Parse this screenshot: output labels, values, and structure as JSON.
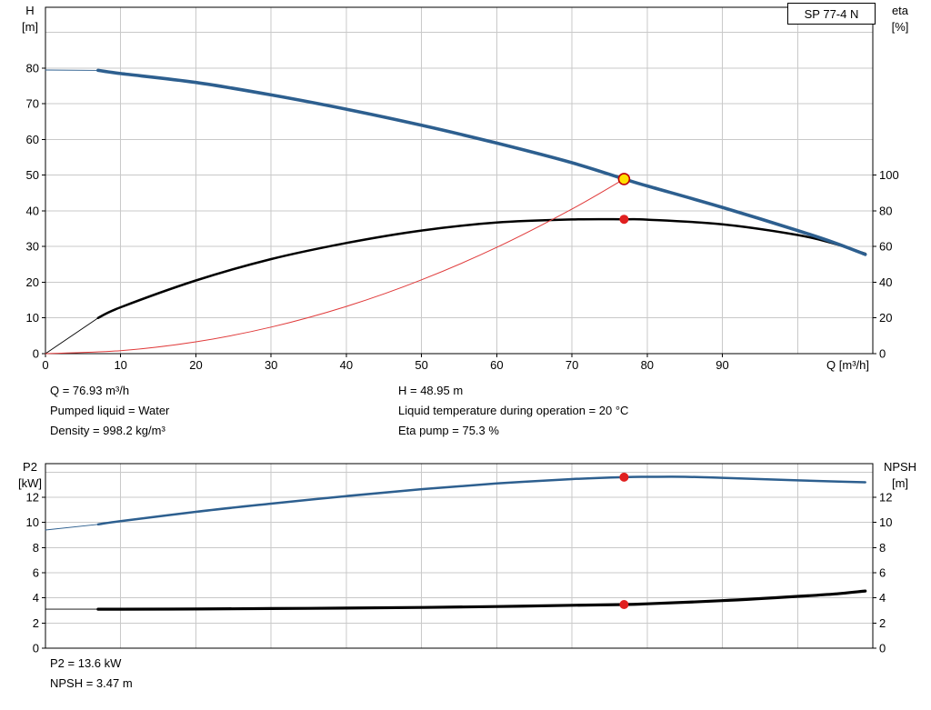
{
  "header": {
    "model": "SP 77-4 N"
  },
  "top_info": {
    "left": [
      "Q = 76.93 m³/h",
      "Pumped liquid = Water",
      "Density = 998.2 kg/m³"
    ],
    "right": [
      "H = 48.95 m",
      "Liquid temperature during operation = 20 °C",
      "Eta pump = 75.3 %"
    ]
  },
  "bottom_info": [
    "P2 = 13.6 kW",
    "NPSH = 3.47 m"
  ],
  "chart_data": [
    {
      "type": "line",
      "title": "QH and efficiency curves",
      "x": {
        "label": "Q [m³/h]",
        "min": 0,
        "max": 110,
        "grid_step": 10,
        "tick_step": 10,
        "tick_label_max": 90,
        "show_tick_labels": true
      },
      "y1": {
        "title": "H",
        "unit": "[m]",
        "min": 0,
        "max": 97.07,
        "grid_step": 10,
        "tick_step": 10,
        "tick_label_max": 80
      },
      "y2": {
        "title": "eta",
        "unit": "[%]",
        "min": 0,
        "max": 194.14,
        "tick_step": 20,
        "tick_label_max": 100
      },
      "legend": "none",
      "grid": true,
      "series": [
        {
          "name": "efficiency-curve",
          "axis": "y2",
          "color": "#000000",
          "width": 2.5,
          "thin_until": 7,
          "points": [
            [
              0,
              0
            ],
            [
              7,
              20
            ],
            [
              10,
              26
            ],
            [
              20,
              41
            ],
            [
              30,
              53
            ],
            [
              40,
              62
            ],
            [
              50,
              69
            ],
            [
              60,
              73.5
            ],
            [
              70,
              75.2
            ],
            [
              76.93,
              75.3
            ],
            [
              80,
              75.1
            ],
            [
              90,
              72.5
            ],
            [
              100,
              66.5
            ],
            [
              105,
              61.5
            ],
            [
              109,
              56
            ]
          ]
        },
        {
          "name": "system-curve",
          "axis": "y1",
          "color": "#e03a3a",
          "width": 1,
          "thin_until": 0,
          "points": [
            [
              0,
              0
            ],
            [
              10,
              0.83
            ],
            [
              20,
              3.31
            ],
            [
              30,
              7.44
            ],
            [
              40,
              13.23
            ],
            [
              50,
              20.68
            ],
            [
              60,
              29.78
            ],
            [
              70,
              40.53
            ],
            [
              76.93,
              48.95
            ]
          ]
        },
        {
          "name": "head-curve",
          "axis": "y1",
          "color": "#2d5f8f",
          "width": 3.6,
          "thin_until": 7,
          "points": [
            [
              0,
              79.5
            ],
            [
              7,
              79.4
            ],
            [
              10,
              78.5
            ],
            [
              20,
              76.0
            ],
            [
              30,
              72.5
            ],
            [
              40,
              68.5
            ],
            [
              50,
              64.0
            ],
            [
              60,
              59.0
            ],
            [
              70,
              53.5
            ],
            [
              76.93,
              48.95
            ],
            [
              80,
              47.0
            ],
            [
              90,
              41.0
            ],
            [
              100,
              34.5
            ],
            [
              105,
              31.0
            ],
            [
              109,
              27.8
            ]
          ]
        }
      ],
      "markers": [
        {
          "name": "duty-point",
          "axis": "y1",
          "x": 76.93,
          "y": 48.95,
          "r": 6,
          "fill": "#ffdf00",
          "stroke": "#c00000"
        },
        {
          "name": "efficiency-point",
          "axis": "y2",
          "x": 76.93,
          "y": 75.3,
          "r": 5,
          "fill": "#e01f1f",
          "stroke": "none"
        }
      ]
    },
    {
      "type": "line",
      "title": "P2 and NPSH curves",
      "x": {
        "label": "",
        "min": 0,
        "max": 110,
        "grid_step": 10,
        "tick_step": 10,
        "tick_label_max": 90,
        "show_tick_labels": false
      },
      "y1": {
        "title": "P2",
        "unit": "[kW]",
        "min": 0,
        "max": 14.68,
        "grid_step": 2,
        "tick_step": 2,
        "tick_label_max": 12
      },
      "y2": {
        "title": "NPSH",
        "unit": "[m]",
        "min": 0,
        "max": 14.68,
        "tick_step": 2,
        "tick_label_max": 12
      },
      "legend": "none",
      "grid": true,
      "series": [
        {
          "name": "p2-curve",
          "axis": "y1",
          "color": "#2d5f8f",
          "width": 2.5,
          "thin_until": 7,
          "points": [
            [
              0,
              9.4
            ],
            [
              7,
              9.85
            ],
            [
              10,
              10.1
            ],
            [
              20,
              10.85
            ],
            [
              30,
              11.5
            ],
            [
              40,
              12.1
            ],
            [
              50,
              12.65
            ],
            [
              60,
              13.1
            ],
            [
              70,
              13.45
            ],
            [
              76.93,
              13.6
            ],
            [
              80,
              13.63
            ],
            [
              85,
              13.63
            ],
            [
              90,
              13.55
            ],
            [
              100,
              13.35
            ],
            [
              105,
              13.26
            ],
            [
              109,
              13.2
            ]
          ]
        },
        {
          "name": "npsh-curve",
          "axis": "y2",
          "color": "#000000",
          "width": 3.2,
          "thin_until": 7,
          "points": [
            [
              0,
              3.1
            ],
            [
              7,
              3.1
            ],
            [
              10,
              3.1
            ],
            [
              20,
              3.12
            ],
            [
              30,
              3.15
            ],
            [
              40,
              3.19
            ],
            [
              50,
              3.24
            ],
            [
              60,
              3.31
            ],
            [
              70,
              3.41
            ],
            [
              76.93,
              3.47
            ],
            [
              80,
              3.53
            ],
            [
              90,
              3.78
            ],
            [
              100,
              4.12
            ],
            [
              105,
              4.32
            ],
            [
              109,
              4.55
            ]
          ]
        }
      ],
      "markers": [
        {
          "name": "p2-point",
          "axis": "y1",
          "x": 76.93,
          "y": 13.6,
          "r": 5,
          "fill": "#e01f1f",
          "stroke": "none"
        },
        {
          "name": "npsh-point",
          "axis": "y2",
          "x": 76.93,
          "y": 3.47,
          "r": 5,
          "fill": "#e01f1f",
          "stroke": "none"
        }
      ]
    }
  ]
}
